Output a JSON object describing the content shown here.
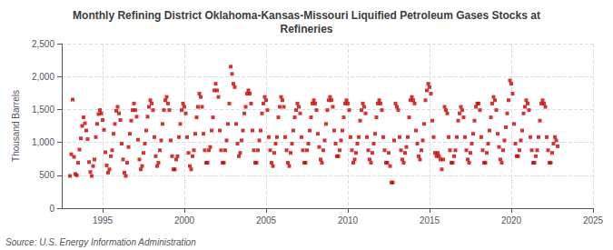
{
  "chart_data": {
    "type": "scatter",
    "title": "Monthly Refining District Oklahoma-Kansas-Missouri Liquified Petroleum Gases Stocks at\nRefineries",
    "ylabel": "Thousand Barrels",
    "annotations": [
      "Source: U.S. Energy Information Administration"
    ],
    "color": "#cc0000",
    "marker": "square",
    "grid": true,
    "xlim": [
      1992.5,
      2025
    ],
    "xticks": [
      1995,
      2000,
      2005,
      2010,
      2015,
      2020,
      2025
    ],
    "ylim": [
      0,
      2500
    ],
    "yticks": [
      0,
      500,
      {
        "value": 1000,
        "label": "1,000"
      },
      {
        "value": 1500,
        "label": "1,500"
      },
      {
        "value": 2000,
        "label": "2,000"
      },
      {
        "value": 2500,
        "label": "2,500"
      }
    ],
    "x": [
      1993.0,
      1993.083,
      1993.167,
      1993.25,
      1993.333,
      1993.417,
      1993.5,
      1993.583,
      1993.667,
      1993.75,
      1993.833,
      1993.917,
      1994.0,
      1994.083,
      1994.167,
      1994.25,
      1994.333,
      1994.417,
      1994.5,
      1994.583,
      1994.667,
      1994.75,
      1994.833,
      1994.917,
      1995.0,
      1995.083,
      1995.167,
      1995.25,
      1995.333,
      1995.417,
      1995.5,
      1995.583,
      1995.667,
      1995.75,
      1995.833,
      1995.917,
      1996.0,
      1996.083,
      1996.167,
      1996.25,
      1996.333,
      1996.417,
      1996.5,
      1996.583,
      1996.667,
      1996.75,
      1996.833,
      1996.917,
      1997.0,
      1997.083,
      1997.167,
      1997.25,
      1997.333,
      1997.417,
      1997.5,
      1997.583,
      1997.667,
      1997.75,
      1997.833,
      1997.917,
      1998.0,
      1998.083,
      1998.167,
      1998.25,
      1998.333,
      1998.417,
      1998.5,
      1998.583,
      1998.667,
      1998.75,
      1998.833,
      1998.917,
      1999.0,
      1999.083,
      1999.167,
      1999.25,
      1999.333,
      1999.417,
      1999.5,
      1999.583,
      1999.667,
      1999.75,
      1999.833,
      1999.917,
      2000.0,
      2000.083,
      2000.167,
      2000.25,
      2000.333,
      2000.417,
      2000.5,
      2000.583,
      2000.667,
      2000.75,
      2000.833,
      2000.917,
      2001.0,
      2001.083,
      2001.167,
      2001.25,
      2001.333,
      2001.417,
      2001.5,
      2001.583,
      2001.667,
      2001.75,
      2001.833,
      2001.917,
      2002.0,
      2002.083,
      2002.167,
      2002.25,
      2002.333,
      2002.417,
      2002.5,
      2002.583,
      2002.667,
      2002.75,
      2002.833,
      2002.917,
      2003.0,
      2003.083,
      2003.167,
      2003.25,
      2003.333,
      2003.417,
      2003.5,
      2003.583,
      2003.667,
      2003.75,
      2003.833,
      2003.917,
      2004.0,
      2004.083,
      2004.167,
      2004.25,
      2004.333,
      2004.417,
      2004.5,
      2004.583,
      2004.667,
      2004.75,
      2004.833,
      2004.917,
      2005.0,
      2005.083,
      2005.167,
      2005.25,
      2005.333,
      2005.417,
      2005.5,
      2005.583,
      2005.667,
      2005.75,
      2005.833,
      2005.917,
      2006.0,
      2006.083,
      2006.167,
      2006.25,
      2006.333,
      2006.417,
      2006.5,
      2006.583,
      2006.667,
      2006.75,
      2006.833,
      2006.917,
      2007.0,
      2007.083,
      2007.167,
      2007.25,
      2007.333,
      2007.417,
      2007.5,
      2007.583,
      2007.667,
      2007.75,
      2007.833,
      2007.917,
      2008.0,
      2008.083,
      2008.167,
      2008.25,
      2008.333,
      2008.417,
      2008.5,
      2008.583,
      2008.667,
      2008.75,
      2008.833,
      2008.917,
      2009.0,
      2009.083,
      2009.167,
      2009.25,
      2009.333,
      2009.417,
      2009.5,
      2009.583,
      2009.667,
      2009.75,
      2009.833,
      2009.917,
      2010.0,
      2010.083,
      2010.167,
      2010.25,
      2010.333,
      2010.417,
      2010.5,
      2010.583,
      2010.667,
      2010.75,
      2010.833,
      2010.917,
      2011.0,
      2011.083,
      2011.167,
      2011.25,
      2011.333,
      2011.417,
      2011.5,
      2011.583,
      2011.667,
      2011.75,
      2011.833,
      2011.917,
      2012.0,
      2012.083,
      2012.167,
      2012.25,
      2012.333,
      2012.417,
      2012.5,
      2012.583,
      2012.667,
      2012.75,
      2012.833,
      2012.917,
      2013.0,
      2013.083,
      2013.167,
      2013.25,
      2013.333,
      2013.417,
      2013.5,
      2013.583,
      2013.667,
      2013.75,
      2013.833,
      2013.917,
      2014.0,
      2014.083,
      2014.167,
      2014.25,
      2014.333,
      2014.417,
      2014.5,
      2014.583,
      2014.667,
      2014.75,
      2014.833,
      2014.917,
      2015.0,
      2015.083,
      2015.167,
      2015.25,
      2015.333,
      2015.417,
      2015.5,
      2015.583,
      2015.667,
      2015.75,
      2015.833,
      2015.917,
      2016.0,
      2016.083,
      2016.167,
      2016.25,
      2016.333,
      2016.417,
      2016.5,
      2016.583,
      2016.667,
      2016.75,
      2016.833,
      2016.917,
      2017.0,
      2017.083,
      2017.167,
      2017.25,
      2017.333,
      2017.417,
      2017.5,
      2017.583,
      2017.667,
      2017.75,
      2017.833,
      2017.917,
      2018.0,
      2018.083,
      2018.167,
      2018.25,
      2018.333,
      2018.417,
      2018.5,
      2018.583,
      2018.667,
      2018.75,
      2018.833,
      2018.917,
      2019.0,
      2019.083,
      2019.167,
      2019.25,
      2019.333,
      2019.417,
      2019.5,
      2019.583,
      2019.667,
      2019.75,
      2019.833,
      2019.917,
      2020.0,
      2020.083,
      2020.167,
      2020.25,
      2020.333,
      2020.417,
      2020.5,
      2020.583,
      2020.667,
      2020.75,
      2020.833,
      2020.917,
      2021.0,
      2021.083,
      2021.167,
      2021.25,
      2021.333,
      2021.417,
      2021.5,
      2021.583,
      2021.667,
      2021.75,
      2021.833,
      2021.917,
      2022.0,
      2022.083,
      2022.167,
      2022.25,
      2022.333,
      2022.417,
      2022.5,
      2022.583,
      2022.667,
      2022.75,
      2022.833
    ],
    "values": [
      490,
      820,
      1650,
      780,
      520,
      500,
      690,
      890,
      1060,
      1250,
      1380,
      1290,
      1180,
      1050,
      700,
      550,
      490,
      640,
      740,
      1080,
      1280,
      1430,
      1490,
      1440,
      1340,
      1190,
      850,
      650,
      540,
      590,
      790,
      880,
      1130,
      1280,
      1480,
      1540,
      1440,
      1340,
      980,
      740,
      540,
      490,
      690,
      930,
      1130,
      1330,
      1490,
      1590,
      1490,
      1390,
      1040,
      740,
      590,
      640,
      840,
      980,
      1180,
      1390,
      1540,
      1640,
      1590,
      1490,
      1080,
      790,
      640,
      690,
      880,
      1030,
      1280,
      1490,
      1640,
      1690,
      1590,
      1490,
      1030,
      790,
      590,
      590,
      740,
      790,
      1080,
      1280,
      1490,
      1590,
      1540,
      1440,
      1080,
      840,
      640,
      590,
      790,
      880,
      1130,
      1380,
      1540,
      1740,
      1690,
      1540,
      1130,
      880,
      690,
      690,
      880,
      930,
      1180,
      1380,
      1790,
      1890,
      1790,
      1690,
      1180,
      880,
      690,
      690,
      880,
      1030,
      1280,
      1590,
      2150,
      2040,
      1890,
      1840,
      1280,
      980,
      790,
      840,
      1030,
      1180,
      1440,
      1540,
      1740,
      1790,
      1740,
      1590,
      1180,
      880,
      690,
      690,
      880,
      1030,
      1180,
      1440,
      1590,
      1690,
      1640,
      1490,
      1080,
      880,
      690,
      640,
      840,
      980,
      1080,
      1380,
      1540,
      1690,
      1640,
      1540,
      1080,
      880,
      690,
      640,
      840,
      980,
      1180,
      1380,
      1490,
      1590,
      1540,
      1440,
      1080,
      880,
      690,
      690,
      880,
      980,
      1180,
      1380,
      1590,
      1640,
      1590,
      1490,
      1130,
      930,
      740,
      690,
      880,
      1030,
      1280,
      1490,
      1640,
      1690,
      1640,
      1540,
      1180,
      980,
      790,
      790,
      880,
      1030,
      1180,
      1380,
      1590,
      1640,
      1590,
      1490,
      1080,
      880,
      690,
      740,
      840,
      980,
      1080,
      1330,
      1490,
      1590,
      1540,
      1440,
      1080,
      880,
      740,
      690,
      840,
      980,
      1130,
      1380,
      1590,
      1640,
      1590,
      1490,
      1080,
      880,
      690,
      690,
      840,
      640,
      390,
      390,
      1030,
      1590,
      1540,
      1490,
      1080,
      880,
      740,
      690,
      840,
      930,
      1080,
      1380,
      1640,
      1690,
      1640,
      1590,
      1180,
      980,
      790,
      740,
      880,
      1030,
      1280,
      1640,
      1790,
      1890,
      1840,
      1740,
      1330,
      1080,
      840,
      790,
      840,
      790,
      740,
      590,
      740,
      1540,
      1490,
      1440,
      1080,
      880,
      690,
      690,
      790,
      880,
      1080,
      1330,
      1440,
      1540,
      1490,
      1380,
      1080,
      880,
      740,
      690,
      840,
      980,
      1130,
      1330,
      1540,
      1590,
      1590,
      1490,
      1080,
      880,
      690,
      690,
      840,
      980,
      1180,
      1380,
      1590,
      1690,
      1640,
      1490,
      1130,
      930,
      740,
      690,
      880,
      1030,
      1230,
      1440,
      1640,
      1940,
      1890,
      1740,
      1280,
      980,
      790,
      790,
      880,
      1030,
      1180,
      1440,
      1540,
      1640,
      1590,
      1490,
      1080,
      880,
      690,
      690,
      790,
      880,
      1080,
      1330,
      1590,
      1640,
      1590,
      1540,
      1080,
      880,
      690,
      690,
      840,
      980,
      1080,
      1030,
      940
    ]
  }
}
